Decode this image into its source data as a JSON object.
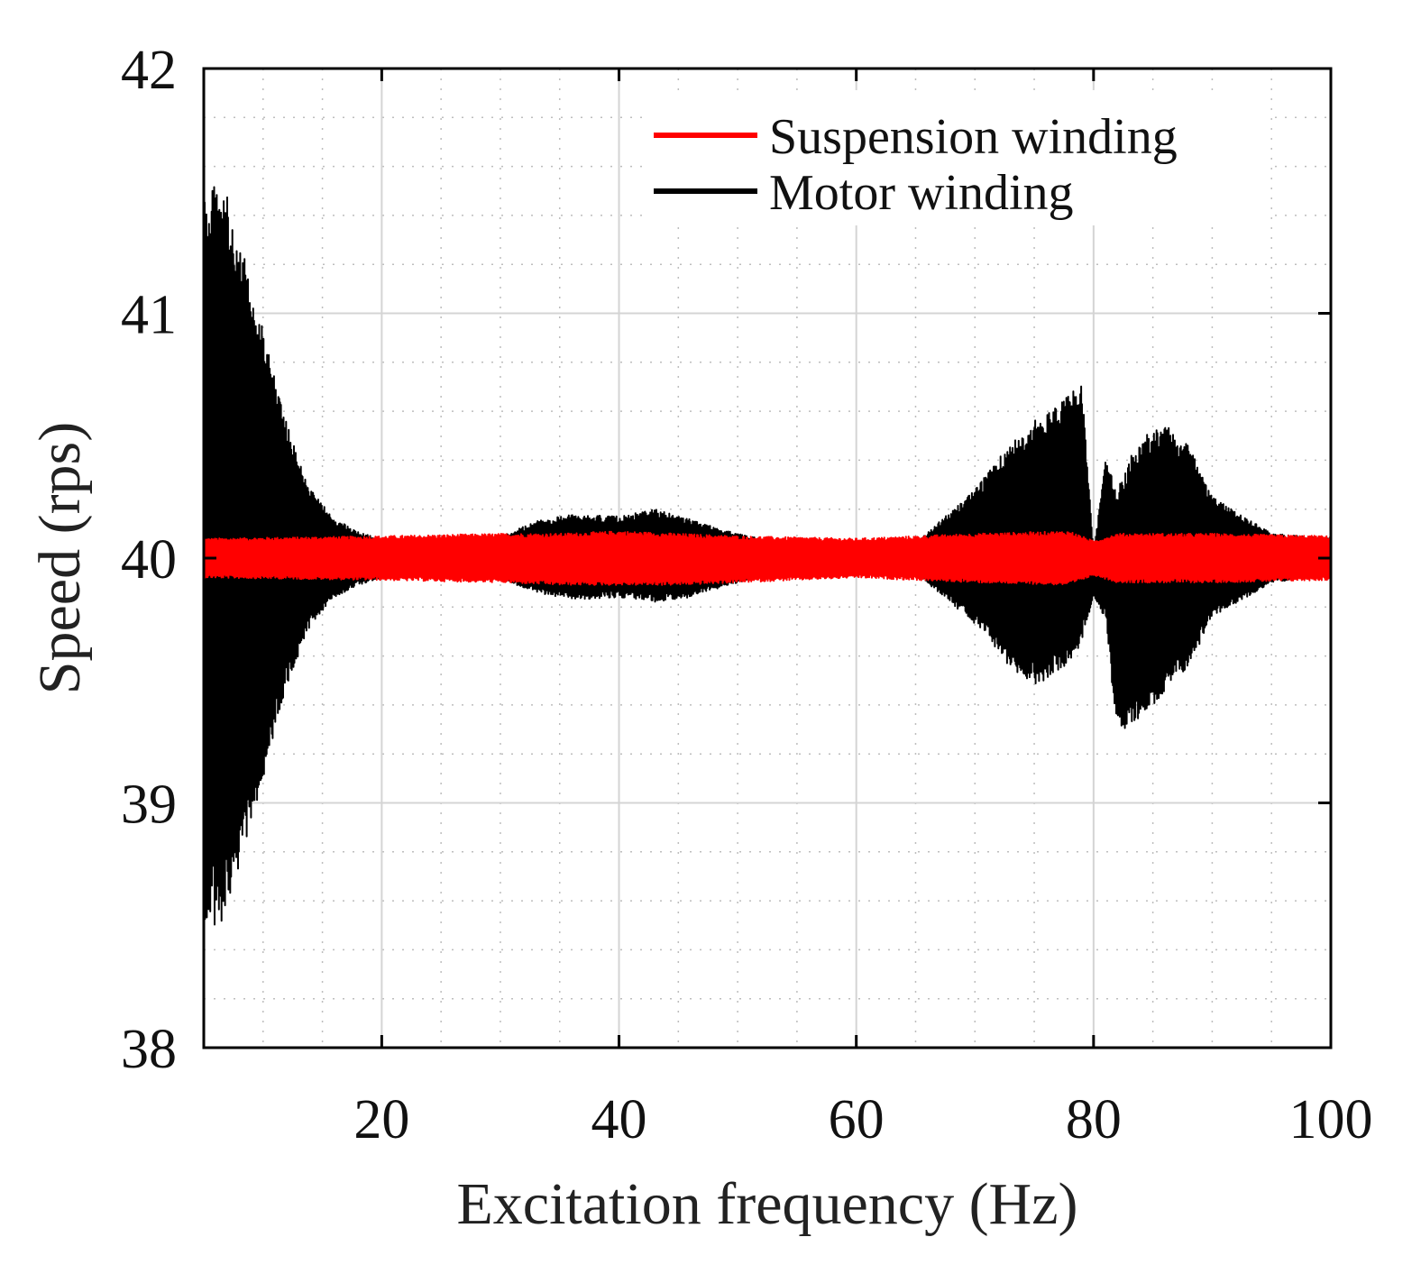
{
  "chart_data": {
    "type": "line",
    "title": "",
    "xlabel": "Excitation frequency (Hz)",
    "ylabel": "Speed (rps)",
    "xlim": [
      5,
      100
    ],
    "ylim": [
      38,
      42
    ],
    "xticks": [
      20,
      40,
      60,
      80,
      100
    ],
    "yticks": [
      38,
      39,
      40,
      41,
      42
    ],
    "xtick_labels": [
      "20",
      "40",
      "60",
      "80",
      "100"
    ],
    "ytick_labels": [
      "38",
      "39",
      "40",
      "41",
      "42"
    ],
    "grid": true,
    "minor_grid": true,
    "legend_position": "top-right",
    "series": [
      {
        "name": "Suspension winding",
        "color": "#ff0000",
        "kind": "oscillation-envelope",
        "x": [
          5,
          20,
          30,
          35,
          40,
          45,
          50,
          60,
          70,
          78,
          80,
          82,
          90,
          100
        ],
        "upper": [
          40.08,
          40.09,
          40.1,
          40.1,
          40.11,
          40.1,
          40.09,
          40.08,
          40.1,
          40.11,
          40.07,
          40.1,
          40.1,
          40.09
        ],
        "lower": [
          39.92,
          39.91,
          39.9,
          39.89,
          39.89,
          39.89,
          39.9,
          39.92,
          39.9,
          39.89,
          39.93,
          39.9,
          39.9,
          39.91
        ]
      },
      {
        "name": "Motor winding",
        "color": "#000000",
        "kind": "oscillation-envelope",
        "x": [
          5,
          7,
          8,
          10,
          12,
          14,
          16,
          18,
          20,
          25,
          30,
          33,
          36,
          40,
          43,
          46,
          50,
          55,
          60,
          65,
          70,
          73,
          75,
          77,
          79,
          80,
          81,
          82,
          84,
          86,
          88,
          90,
          95,
          100
        ],
        "upper": [
          41.55,
          41.48,
          41.3,
          40.95,
          40.55,
          40.28,
          40.16,
          40.11,
          40.08,
          40.06,
          40.09,
          40.15,
          40.18,
          40.17,
          40.2,
          40.16,
          40.1,
          40.05,
          40.03,
          40.06,
          40.28,
          40.47,
          40.56,
          40.62,
          40.72,
          40.02,
          40.4,
          40.3,
          40.5,
          40.55,
          40.46,
          40.25,
          40.1,
          40.08
        ],
        "lower": [
          38.45,
          38.52,
          38.75,
          39.1,
          39.48,
          39.73,
          39.84,
          39.89,
          39.92,
          39.94,
          39.91,
          39.86,
          39.83,
          39.84,
          39.82,
          39.84,
          39.9,
          39.95,
          39.97,
          39.94,
          39.73,
          39.55,
          39.48,
          39.52,
          39.65,
          39.85,
          39.75,
          39.28,
          39.35,
          39.45,
          39.55,
          39.76,
          39.9,
          39.93
        ]
      }
    ]
  }
}
